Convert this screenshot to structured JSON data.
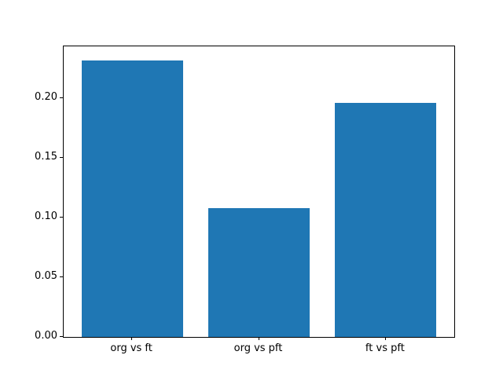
{
  "figure": {
    "background": "#ffffff",
    "spine_color": "#000000",
    "text_color": "#000000"
  },
  "chart_data": {
    "type": "bar",
    "title": "",
    "xlabel": "",
    "ylabel": "",
    "categories": [
      "org vs ft",
      "org vs pft",
      "ft vs pft"
    ],
    "values": [
      0.232,
      0.108,
      0.196
    ],
    "bar_color": "#1f77b4",
    "bar_width_fraction": 0.8,
    "xlim": [
      -0.54,
      2.54
    ],
    "ylim": [
      0,
      0.2436
    ],
    "yticks": [
      0.0,
      0.05,
      0.1,
      0.15,
      0.2
    ],
    "ytick_labels": [
      "0.00",
      "0.05",
      "0.10",
      "0.15",
      "0.20"
    ],
    "grid": false,
    "legend": null
  }
}
